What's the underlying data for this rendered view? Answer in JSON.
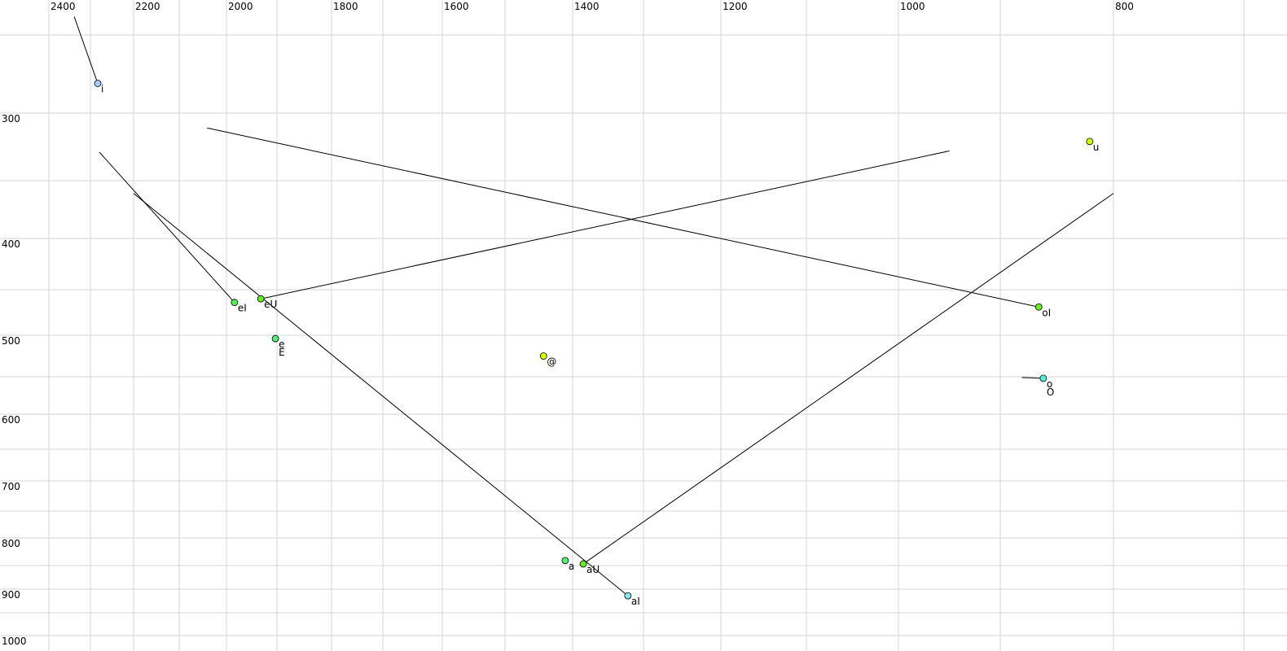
{
  "chart_data": {
    "type": "scatter",
    "title": "",
    "xlabel": "",
    "ylabel": "",
    "x_axis": {
      "reversed": true,
      "position": "top",
      "ticks": [
        2400,
        2200,
        2000,
        1800,
        1600,
        1400,
        1200,
        1000,
        800
      ],
      "gridline_step": 100,
      "range": [
        2400,
        700
      ]
    },
    "y_axis": {
      "reversed": true,
      "position": "left",
      "ticks": [
        300,
        400,
        500,
        600,
        700,
        800,
        900,
        1000
      ],
      "gridline_step": 50,
      "range": [
        250,
        1000
      ]
    },
    "grid": true,
    "points": [
      {
        "labels": [
          "i"
        ],
        "f2": 2283,
        "f1": 281,
        "color": "#a8ccff",
        "start": [
          2339,
          241
        ]
      },
      {
        "labels": [
          "u"
        ],
        "f2": 821,
        "f1": 321,
        "color": "#ccff00"
      },
      {
        "labels": [
          "eI"
        ],
        "f2": 1984,
        "f1": 464,
        "color": "#55ee55",
        "start": [
          2279,
          329
        ]
      },
      {
        "labels": [
          "eU"
        ],
        "f2": 1932,
        "f1": 460,
        "color": "#66ee22",
        "start": [
          950,
          328
        ]
      },
      {
        "labels": [
          "e",
          "E"
        ],
        "f2": 1903,
        "f1": 504,
        "color": "#55ee77"
      },
      {
        "labels": [
          "@"
        ],
        "f2": 1443,
        "f1": 525,
        "color": "#ddff00"
      },
      {
        "labels": [
          "oI"
        ],
        "f2": 866,
        "f1": 469,
        "color": "#66ee22",
        "start": [
          2041,
          311
        ]
      },
      {
        "labels": [
          "o",
          "O"
        ],
        "f2": 862,
        "f1": 552,
        "color": "#55eedd",
        "start": [
          881,
          551
        ]
      },
      {
        "labels": [
          "a"
        ],
        "f2": 1411,
        "f1": 841,
        "color": "#55ee77"
      },
      {
        "labels": [
          "aU"
        ],
        "f2": 1385,
        "f1": 847,
        "color": "#66ee22",
        "start": [
          800,
          361
        ]
      },
      {
        "labels": [
          "aI"
        ],
        "f2": 1322,
        "f1": 914,
        "color": "#88e8ee",
        "start": [
          2200,
          361
        ]
      }
    ]
  }
}
